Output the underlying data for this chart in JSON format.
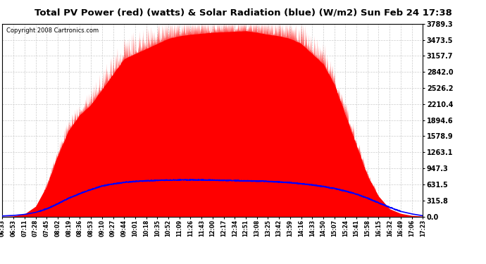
{
  "title": "Total PV Power (red) (watts) & Solar Radiation (blue) (W/m2) Sun Feb 24 17:38",
  "copyright": "Copyright 2008 Cartronics.com",
  "ymin": 0.0,
  "ymax": 3789.3,
  "yticks": [
    0.0,
    315.8,
    631.5,
    947.3,
    1263.1,
    1578.9,
    1894.6,
    2210.4,
    2526.2,
    2842.0,
    3157.7,
    3473.5,
    3789.3
  ],
  "xtick_labels": [
    "06:33",
    "06:53",
    "07:11",
    "07:28",
    "07:45",
    "08:02",
    "08:19",
    "08:36",
    "08:53",
    "09:10",
    "09:27",
    "09:44",
    "10:01",
    "10:18",
    "10:35",
    "10:52",
    "11:09",
    "11:26",
    "11:43",
    "12:00",
    "12:17",
    "12:34",
    "12:51",
    "13:08",
    "13:25",
    "13:42",
    "13:59",
    "14:16",
    "14:33",
    "14:50",
    "15:07",
    "15:24",
    "15:41",
    "15:58",
    "16:15",
    "16:32",
    "16:49",
    "17:06",
    "17:23"
  ],
  "bg_color": "#ffffff",
  "plot_bg_color": "#ffffff",
  "grid_color": "#cccccc",
  "red_color": "#ff0000",
  "blue_color": "#0000ff",
  "title_color": "#000000"
}
